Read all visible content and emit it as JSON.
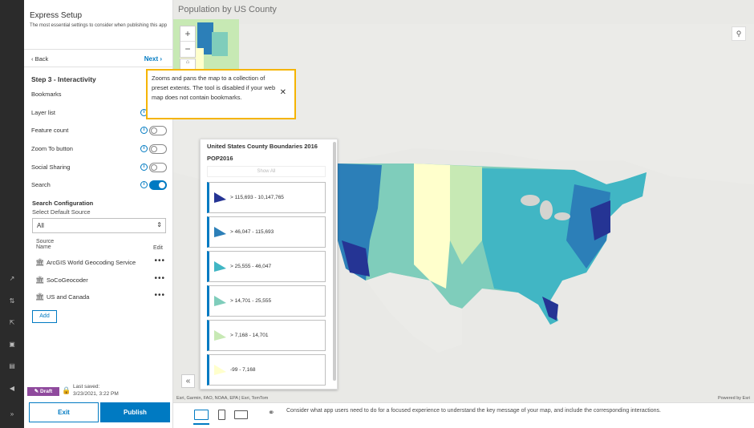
{
  "panel": {
    "title": "Express Setup",
    "subtitle": "The most essential settings to consider when publishing this app",
    "back_label": "Back",
    "next_label": "Next",
    "step_title": "Step 3 - Interactivity",
    "options": [
      {
        "label": "Bookmarks",
        "toggle": null
      },
      {
        "label": "Layer list",
        "toggle": "off"
      },
      {
        "label": "Feature count",
        "toggle": "off"
      },
      {
        "label": "Zoom To button",
        "toggle": "off"
      },
      {
        "label": "Social Sharing",
        "toggle": "off"
      },
      {
        "label": "Search",
        "toggle": "on"
      }
    ],
    "search_config_title": "Search Configuration",
    "default_source_label": "Select Default Source",
    "default_source_value": "All",
    "source_header": "Source",
    "name_header": "Name",
    "edit_header": "Edit",
    "sources": [
      "ArcGIS World Geocoding Service",
      "SoCoGeocoder",
      "US and Canada"
    ],
    "add_label": "Add",
    "draft_label": "Draft",
    "last_saved_label": "Last saved:",
    "last_saved_value": "3/23/2021, 3:22 PM",
    "exit_label": "Exit",
    "publish_label": "Publish"
  },
  "map": {
    "title": "Population by US County",
    "attribution": "Esri, Garmin, FAO, NOAA, EPA | Esri, TomTom",
    "powered_by": "Powered by Esri",
    "tooltip": "Zooms and pans the map to a collection of preset extents. The tool is disabled if your web map does not contain bookmarks."
  },
  "legend": {
    "layer_title": "United States County Boundaries 2016",
    "field": "POP2016",
    "show_all": "Show All",
    "classes": [
      {
        "label": "> 115,693 - 10,147,765",
        "color": "#253494"
      },
      {
        "label": "> 46,047 - 115,693",
        "color": "#2c7fb8"
      },
      {
        "label": "> 25,555 - 46,047",
        "color": "#41b6c4"
      },
      {
        "label": "> 14,701 - 25,555",
        "color": "#7fcdbb"
      },
      {
        "label": "> 7,168 - 14,701",
        "color": "#c7e9b4"
      },
      {
        "label": "-99 - 7,168",
        "color": "#ffffcc"
      }
    ]
  },
  "bottom": {
    "hint": "Consider what app users need to do for a focused experience to understand the key message of your map, and include the corresponding interactions."
  },
  "colors": {
    "accent": "#007ac2",
    "draft": "#8f4a9d",
    "highlight": "#f5b400"
  }
}
